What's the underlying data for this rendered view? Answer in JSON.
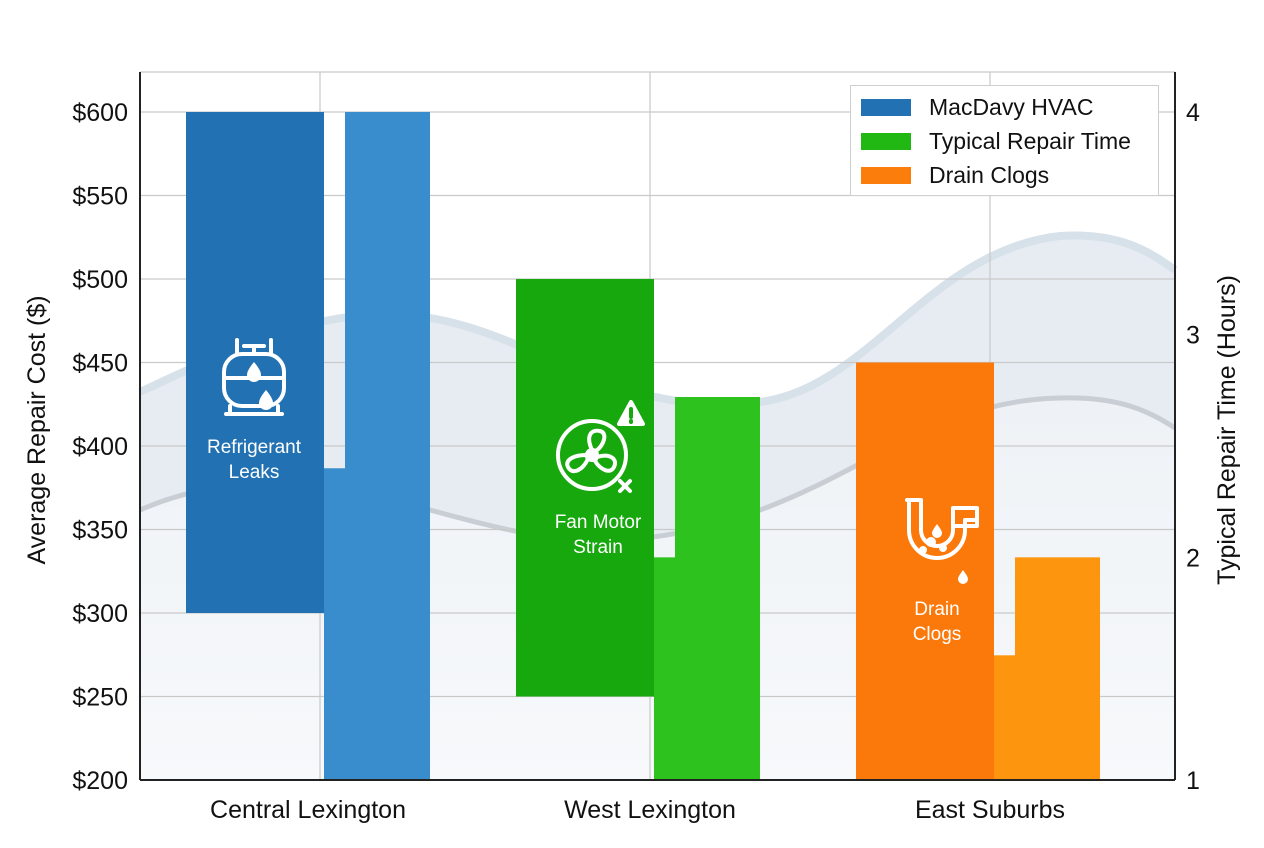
{
  "chart_data": {
    "type": "bar",
    "categories": [
      "Central Lexington",
      "West Lexington",
      "East Suburbs"
    ],
    "y_left": {
      "label": "Average Repair Cost ($)",
      "range": [
        200,
        600
      ],
      "ticks": [
        "$200",
        "$250",
        "$300",
        "$350",
        "$400",
        "$450",
        "$500",
        "$550",
        "$600"
      ],
      "tick_values": [
        200,
        250,
        300,
        350,
        400,
        450,
        500,
        550,
        600
      ]
    },
    "y_right": {
      "label": "Typical Repair Time (Hours)",
      "range": [
        1,
        4
      ],
      "ticks": [
        "1",
        "2",
        "3",
        "4"
      ],
      "tick_values": [
        1,
        2,
        3,
        4
      ]
    },
    "grid": true,
    "legend_placement": "top-right",
    "legend": [
      {
        "label": "MacDavy HVAC",
        "color": "#2271b3"
      },
      {
        "label": "Typical Repair Time",
        "color": "#22b814"
      },
      {
        "label": "Drain Clogs",
        "color": "#fb7e0c"
      }
    ],
    "series": [
      {
        "name": "MacDavy HVAC",
        "axis": "left",
        "floating": true,
        "ranges": [
          [
            300,
            600
          ],
          [
            250,
            500
          ],
          [
            200,
            450
          ]
        ],
        "colors": [
          "#2271b3",
          "#17a80e",
          "#fb780a"
        ]
      },
      {
        "name": "Typical Repair Time",
        "axis": "right",
        "steps": [
          {
            "low": 2.4,
            "high": 4.0,
            "step_from": 1.0
          },
          {
            "low": 2.0,
            "high": 2.72,
            "step_from": 1.0
          },
          {
            "low": 1.56,
            "high": 2.0,
            "step_from": 1.0
          }
        ],
        "colors": [
          "#3a8dcc",
          "#2ec21f",
          "#fd950f"
        ]
      }
    ],
    "bar_labels": [
      {
        "lines": [
          "Refrigerant",
          "Leaks"
        ],
        "icon": "refrigerant-tank-icon"
      },
      {
        "lines": [
          "Fan Motor",
          "Strain"
        ],
        "icon": "fan-warning-icon"
      },
      {
        "lines": [
          "Drain",
          "Clogs"
        ],
        "icon": "drain-pipe-icon"
      }
    ]
  }
}
